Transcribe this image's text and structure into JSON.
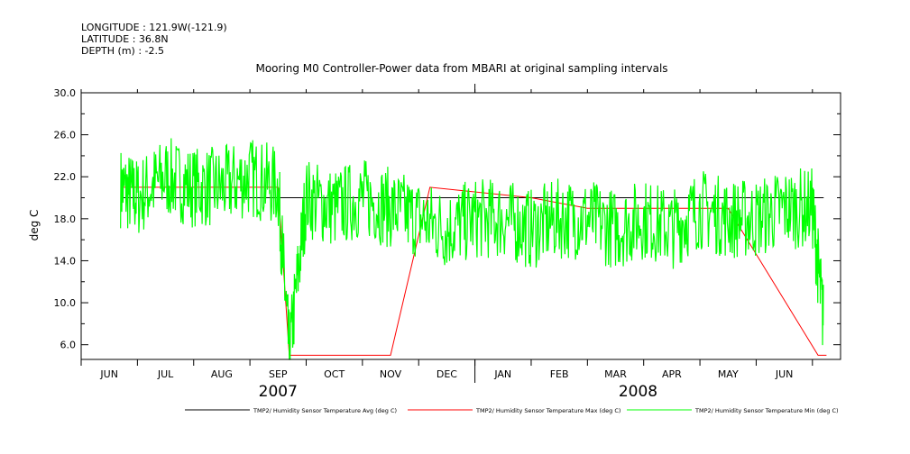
{
  "header": {
    "longitude": "LONGITUDE : 121.9W(-121.9)",
    "latitude": "LATITUDE : 36.8N",
    "depth": "DEPTH (m) : -2.5"
  },
  "chart_data": {
    "type": "line",
    "title": "Mooring M0 Controller-Power data from MBARI at original sampling intervals",
    "ylabel": "deg C",
    "xlabel": "",
    "ylim": [
      4.6,
      30.0
    ],
    "yticks": [
      6.0,
      10.0,
      14.0,
      18.0,
      22.0,
      26.0,
      30.0
    ],
    "ytick_labels": [
      "6.0",
      "10.0",
      "14.0",
      "18.0",
      "22.0",
      "26.0",
      "30.0"
    ],
    "x_range_months": [
      0,
      13.5
    ],
    "months": [
      {
        "label": "JUN",
        "pos": 0.5
      },
      {
        "label": "JUL",
        "pos": 1.5
      },
      {
        "label": "AUG",
        "pos": 2.5
      },
      {
        "label": "SEP",
        "pos": 3.5
      },
      {
        "label": "OCT",
        "pos": 4.5
      },
      {
        "label": "NOV",
        "pos": 5.5
      },
      {
        "label": "DEC",
        "pos": 6.5
      },
      {
        "label": "JAN",
        "pos": 7.5
      },
      {
        "label": "FEB",
        "pos": 8.5
      },
      {
        "label": "MAR",
        "pos": 9.5
      },
      {
        "label": "APR",
        "pos": 10.5
      },
      {
        "label": "MAY",
        "pos": 11.5
      },
      {
        "label": "JUN",
        "pos": 12.5
      }
    ],
    "years": [
      {
        "label": "2007",
        "pos": 3.5
      },
      {
        "label": "2008",
        "pos": 9.9
      }
    ],
    "year_boundary": 7.0,
    "series": [
      {
        "name": "TMP2/ Humidity Sensor Temperature Avg (deg C)",
        "color": "#000000",
        "x": [
          0.7,
          13.2
        ],
        "y": [
          20,
          20
        ]
      },
      {
        "name": "TMP2/ Humidity Sensor Temperature Max (deg C)",
        "color": "#ff0000",
        "x": [
          0.7,
          3.5,
          3.7,
          4.2,
          4.6,
          5.2,
          5.5,
          6.2,
          8.0,
          9.0,
          10.0,
          11.5,
          13.1,
          13.25
        ],
        "y": [
          21,
          21,
          5,
          5,
          5,
          5,
          5,
          21,
          20,
          19,
          19,
          19,
          5,
          5
        ]
      },
      {
        "name": "TMP2/ Humidity Sensor Temperature Min (deg C)",
        "color": "#00ff00",
        "x": [
          0.7,
          1.0,
          1.5,
          2.0,
          2.5,
          3.0,
          3.5,
          3.7,
          4.0,
          4.5,
          5.0,
          5.5,
          6.0,
          6.5,
          7.0,
          7.5,
          8.0,
          8.5,
          9.0,
          9.5,
          10.0,
          10.5,
          11.0,
          11.5,
          12.0,
          12.5,
          13.0,
          13.2
        ],
        "y": [
          21,
          20,
          22,
          21,
          21,
          22,
          21,
          5,
          20,
          19,
          20,
          19,
          18,
          17,
          18,
          18,
          17,
          18,
          18,
          17,
          18,
          17,
          19,
          18,
          18,
          19,
          19,
          8
        ],
        "noise_band": {
          "low": 13,
          "high": 26
        }
      }
    ],
    "legend": [
      {
        "label": "TMP2/ Humidity Sensor Temperature Avg (deg C)",
        "color": "#000000"
      },
      {
        "label": "TMP2/ Humidity Sensor Temperature Max (deg C)",
        "color": "#ff0000"
      },
      {
        "label": "TMP2/ Humidity Sensor Temperature Min (deg C)",
        "color": "#00ff00"
      }
    ]
  }
}
